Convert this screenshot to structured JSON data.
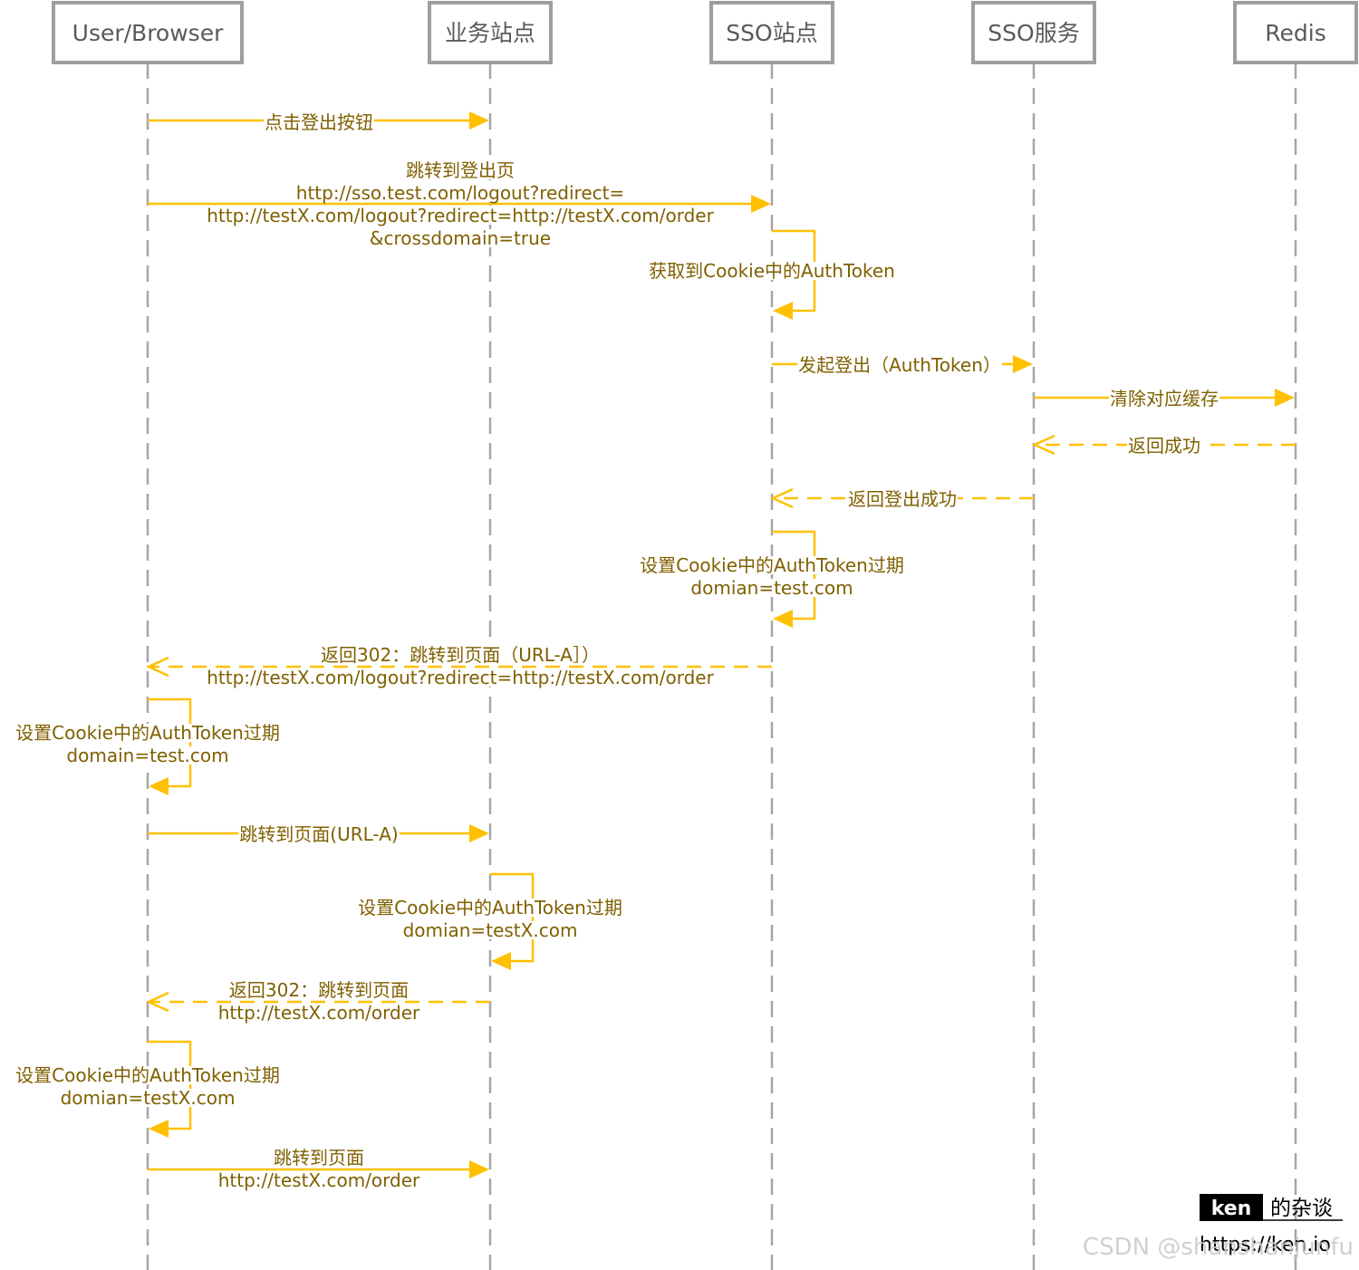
{
  "actors": [
    "User/Browser",
    "业务站点",
    "SSO站点",
    "SSO服务",
    "Redis"
  ],
  "messages": [
    {
      "from": 0,
      "to": 1,
      "style": "solid",
      "lines": [
        "点击登出按钮"
      ]
    },
    {
      "from": 0,
      "to": 2,
      "style": "solid",
      "lines": [
        "跳转到登出页",
        "http://sso.test.com/logout?redirect=",
        "http://testX.com/logout?redirect=http://testX.com/order",
        "&crossdomain=true"
      ]
    },
    {
      "from": 2,
      "to": 2,
      "style": "self",
      "lines": [
        "获取到Cookie中的AuthToken"
      ]
    },
    {
      "from": 2,
      "to": 3,
      "style": "solid",
      "lines": [
        "发起登出（AuthToken）"
      ]
    },
    {
      "from": 3,
      "to": 4,
      "style": "solid",
      "lines": [
        "清除对应缓存"
      ]
    },
    {
      "from": 4,
      "to": 3,
      "style": "dashed",
      "lines": [
        "返回成功"
      ]
    },
    {
      "from": 3,
      "to": 2,
      "style": "dashed",
      "lines": [
        "返回登出成功"
      ]
    },
    {
      "from": 2,
      "to": 2,
      "style": "self",
      "lines": [
        "设置Cookie中的AuthToken过期",
        "domian=test.com"
      ]
    },
    {
      "from": 2,
      "to": 0,
      "style": "dashed",
      "lines": [
        "返回302：跳转到页面（URL-A］）",
        "http://testX.com/logout?redirect=http://testX.com/order"
      ]
    },
    {
      "from": 0,
      "to": 0,
      "style": "self",
      "lines": [
        "设置Cookie中的AuthToken过期",
        "domain=test.com"
      ]
    },
    {
      "from": 0,
      "to": 1,
      "style": "solid",
      "lines": [
        "跳转到页面(URL-A)"
      ]
    },
    {
      "from": 1,
      "to": 1,
      "style": "self",
      "lines": [
        "设置Cookie中的AuthToken过期",
        "domian=testX.com"
      ]
    },
    {
      "from": 1,
      "to": 0,
      "style": "dashed",
      "lines": [
        "返回302：跳转到页面",
        "http://testX.com/order"
      ]
    },
    {
      "from": 0,
      "to": 0,
      "style": "self",
      "lines": [
        "设置Cookie中的AuthToken过期",
        "domian=testX.com"
      ]
    },
    {
      "from": 0,
      "to": 1,
      "style": "solid",
      "lines": [
        "跳转到页面",
        "http://testX.com/order"
      ]
    }
  ],
  "branding": {
    "name": "ken",
    "tagline": "的杂谈",
    "url": "https://ken.io"
  },
  "watermark": "CSDN @shanshanjunfu"
}
